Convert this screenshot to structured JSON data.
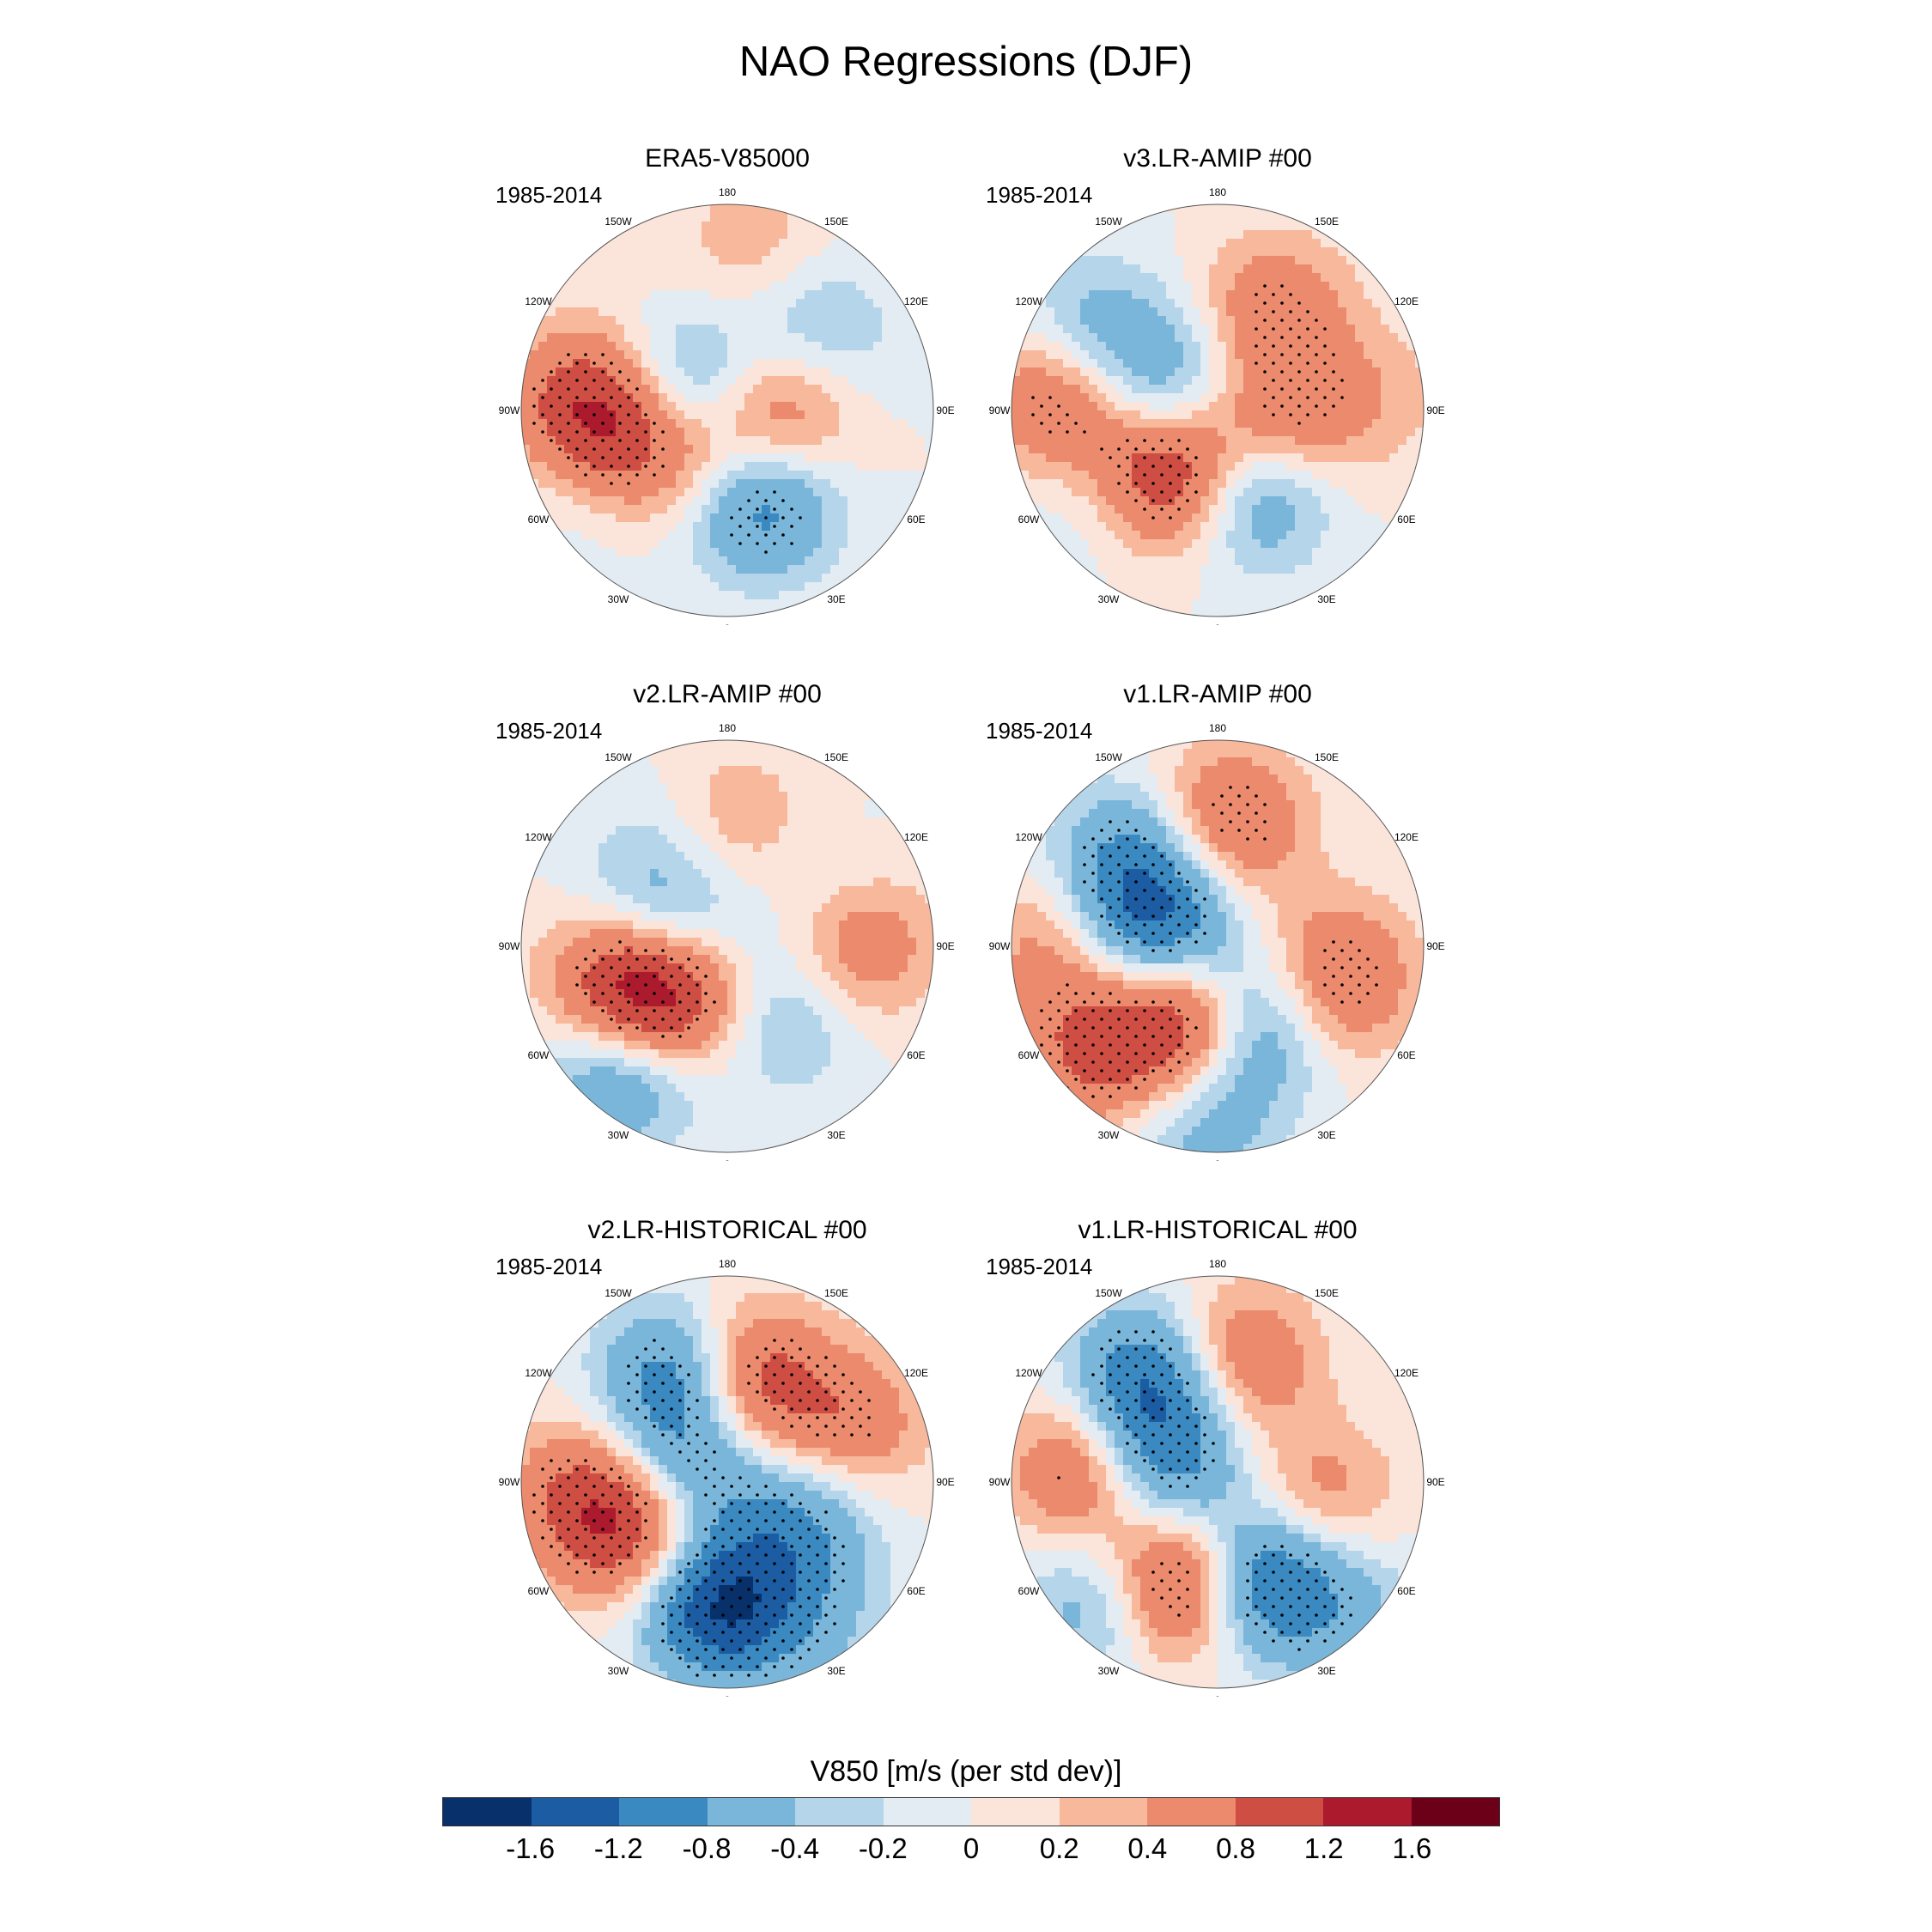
{
  "title": "NAO Regressions (DJF)",
  "colorbar": {
    "title": "V850 [m/s (per std dev)]",
    "colors": [
      "#08306b",
      "#1b5ca3",
      "#3a8ac1",
      "#7ab6d9",
      "#b5d5ea",
      "#e3ecf3",
      "#fbe4da",
      "#f7b89b",
      "#eb8a6d",
      "#cf4e44",
      "#ab1a2d",
      "#6b0018"
    ],
    "labels": [
      "-1.6",
      "-1.2",
      "-0.8",
      "-0.4",
      "-0.2",
      "0",
      "0.2",
      "0.4",
      "0.8",
      "1.2",
      "1.6"
    ]
  },
  "lon_labels": [
    "180",
    "150E",
    "120E",
    "90E",
    "60E",
    "30E",
    "0",
    "30W",
    "60W",
    "90W",
    "120W",
    "150W"
  ],
  "panels": [
    {
      "title": "ERA5-V85000",
      "period": "1985-2014",
      "blobs": [
        {
          "lon": -95,
          "r": 0.72,
          "v": 0.7
        },
        {
          "lon": -80,
          "r": 0.55,
          "v": 0.9
        },
        {
          "lon": -110,
          "r": 0.2,
          "v": -1.0
        },
        {
          "lon": -40,
          "r": 0.25,
          "v": 0.8
        },
        {
          "lon": 20,
          "r": 0.45,
          "v": -1.2
        },
        {
          "lon": 80,
          "r": 0.25,
          "v": 0.9
        },
        {
          "lon": 170,
          "r": 0.8,
          "v": 0.4
        },
        {
          "lon": 145,
          "r": 0.6,
          "v": -0.3
        },
        {
          "lon": 120,
          "r": 0.6,
          "v": -0.25
        },
        {
          "lon": -60,
          "r": 0.8,
          "v": -0.2
        }
      ]
    },
    {
      "title": "v3.LR-AMIP  #00",
      "period": "1985-2014",
      "blobs": [
        {
          "lon": -95,
          "r": 0.75,
          "v": 1.0
        },
        {
          "lon": -120,
          "r": 0.7,
          "v": -0.7
        },
        {
          "lon": -35,
          "r": 0.35,
          "v": 1.5
        },
        {
          "lon": 25,
          "r": 0.4,
          "v": -1.2
        },
        {
          "lon": 70,
          "r": 0.3,
          "v": 0.9
        },
        {
          "lon": 150,
          "r": 0.55,
          "v": 0.7
        },
        {
          "lon": -110,
          "r": 0.25,
          "v": -0.8
        },
        {
          "lon": 95,
          "r": 0.75,
          "v": 0.3
        },
        {
          "lon": -55,
          "r": 0.8,
          "v": -0.2
        }
      ]
    },
    {
      "title": "v2.LR-AMIP  #00",
      "period": "1985-2014",
      "blobs": [
        {
          "lon": -70,
          "r": 0.55,
          "v": 1.0
        },
        {
          "lon": -50,
          "r": 0.35,
          "v": 1.2
        },
        {
          "lon": -40,
          "r": 0.8,
          "v": -0.9
        },
        {
          "lon": 90,
          "r": 0.65,
          "v": 0.7
        },
        {
          "lon": 175,
          "r": 0.6,
          "v": 0.4
        },
        {
          "lon": -110,
          "r": 0.3,
          "v": -0.8
        },
        {
          "lon": 40,
          "r": 0.45,
          "v": -0.5
        },
        {
          "lon": 120,
          "r": 0.55,
          "v": -0.2
        },
        {
          "lon": -140,
          "r": 0.6,
          "v": -0.2
        }
      ]
    },
    {
      "title": "v1.LR-AMIP  #00",
      "period": "1985-2014",
      "blobs": [
        {
          "lon": -20,
          "r": 0.4,
          "v": 1.6
        },
        {
          "lon": 20,
          "r": 0.4,
          "v": -1.2
        },
        {
          "lon": -110,
          "r": 0.3,
          "v": -1.2
        },
        {
          "lon": -135,
          "r": 0.6,
          "v": -0.8
        },
        {
          "lon": 175,
          "r": 0.6,
          "v": 0.9
        },
        {
          "lon": 75,
          "r": 0.6,
          "v": 0.9
        },
        {
          "lon": -50,
          "r": 0.8,
          "v": 0.8
        },
        {
          "lon": -5,
          "r": 0.85,
          "v": -0.6
        },
        {
          "lon": -90,
          "r": 0.8,
          "v": 0.5
        }
      ]
    },
    {
      "title": "v2.LR-HISTORICAL  #00",
      "period": "1985-2014",
      "blobs": [
        {
          "lon": -5,
          "r": 0.6,
          "v": -1.6
        },
        {
          "lon": -60,
          "r": 0.5,
          "v": 1.0
        },
        {
          "lon": -85,
          "r": 0.7,
          "v": 0.8
        },
        {
          "lon": -155,
          "r": 0.55,
          "v": -1.2
        },
        {
          "lon": 170,
          "r": 0.5,
          "v": 1.2
        },
        {
          "lon": 115,
          "r": 0.65,
          "v": 0.7
        },
        {
          "lon": 60,
          "r": 0.4,
          "v": -0.8
        },
        {
          "lon": -110,
          "r": 0.2,
          "v": -0.8
        },
        {
          "lon": 30,
          "r": 0.8,
          "v": -0.4
        }
      ]
    },
    {
      "title": "v1.LR-HISTORICAL  #00",
      "period": "1985-2014",
      "blobs": [
        {
          "lon": -15,
          "r": 0.5,
          "v": 1.6
        },
        {
          "lon": 20,
          "r": 0.5,
          "v": -1.6
        },
        {
          "lon": -145,
          "r": 0.6,
          "v": -1.2
        },
        {
          "lon": 170,
          "r": 0.6,
          "v": 0.8
        },
        {
          "lon": -95,
          "r": 0.65,
          "v": 0.9
        },
        {
          "lon": 80,
          "r": 0.5,
          "v": 0.6
        },
        {
          "lon": -110,
          "r": 0.25,
          "v": -1.0
        },
        {
          "lon": -45,
          "r": 0.85,
          "v": -0.6
        },
        {
          "lon": 45,
          "r": 0.85,
          "v": -0.5
        }
      ]
    }
  ]
}
